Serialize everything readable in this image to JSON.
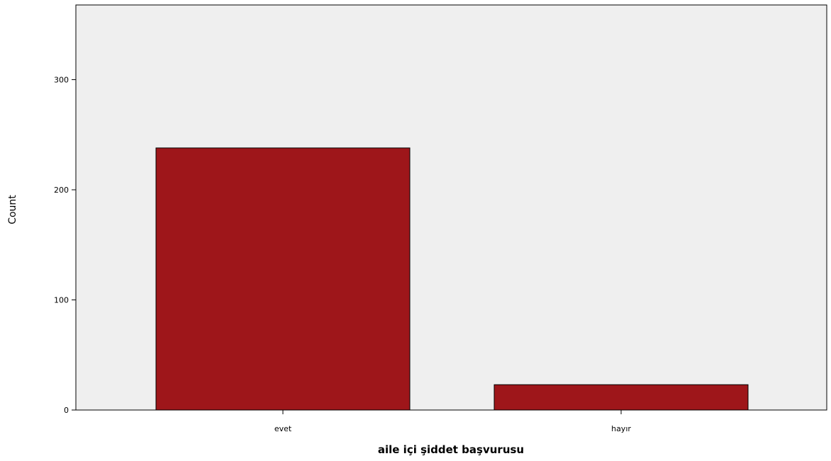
{
  "chart_data": {
    "type": "bar",
    "categories": [
      "evet",
      "hayır"
    ],
    "values": [
      238,
      23
    ],
    "xlabel": "aile içi şiddet başvurusu",
    "ylabel": "Count",
    "ylim": [
      0,
      370
    ],
    "yticks": [
      0,
      100,
      200,
      300
    ],
    "grid": false,
    "legend": "none"
  },
  "colors": {
    "bar": "#9e161a",
    "plot_background": "#efefef",
    "axis": "#000000"
  }
}
